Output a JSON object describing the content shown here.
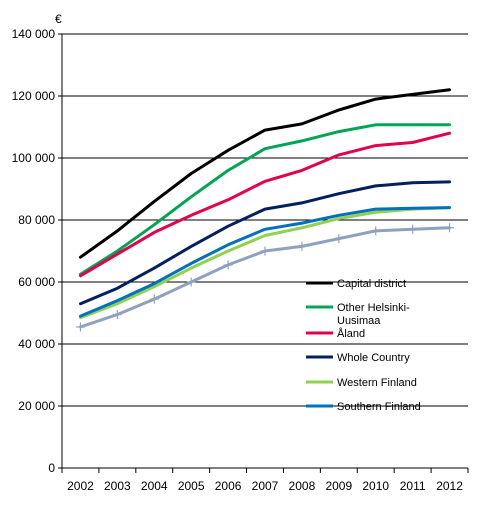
{
  "chart_data": {
    "type": "line",
    "title": "",
    "xlabel": "",
    "ylabel": "",
    "unit": "€",
    "x": [
      2002,
      2003,
      2004,
      2005,
      2006,
      2007,
      2008,
      2009,
      2010,
      2011,
      2012
    ],
    "x_labels": [
      "2002",
      "2003",
      "2004",
      "2005",
      "2006",
      "2007",
      "2008",
      "2009",
      "2010",
      "2011",
      "2012"
    ],
    "ylim": [
      0,
      140000
    ],
    "y_ticks": [
      0,
      20000,
      40000,
      60000,
      80000,
      100000,
      120000,
      140000
    ],
    "y_tick_labels": [
      "0",
      "20 000",
      "40 000",
      "60 000",
      "80 000",
      "100 000",
      "120 000",
      "140 000"
    ],
    "grid": "horizontal",
    "legend_position": "right",
    "series": [
      {
        "name": "Capital district",
        "color": "#000000",
        "marker": "none",
        "values": [
          68000,
          76500,
          86000,
          95000,
          102500,
          109000,
          111000,
          115500,
          119000,
          120500,
          122000
        ]
      },
      {
        "name": "Other Helsinki-Uusimaa",
        "color": "#00a651",
        "marker": "none",
        "values": [
          62500,
          70000,
          78500,
          87500,
          96000,
          103000,
          105500,
          108500,
          110700,
          110700,
          110700
        ]
      },
      {
        "name": "Åland",
        "color": "#e3004f",
        "marker": "none",
        "values": [
          62000,
          69000,
          76000,
          81500,
          86500,
          92500,
          96000,
          101000,
          104000,
          105000,
          108000
        ]
      },
      {
        "name": "Whole Country",
        "color": "#002060",
        "marker": "none",
        "values": [
          53000,
          58000,
          64500,
          71500,
          78000,
          83500,
          85500,
          88500,
          91000,
          92000,
          92300
        ]
      },
      {
        "name": "Western Finland",
        "color": "#92d050",
        "marker": "none",
        "values": [
          48500,
          53000,
          58500,
          64500,
          70000,
          75000,
          77500,
          80500,
          82500,
          83500,
          84000
        ]
      },
      {
        "name": "Southern Finland",
        "color": "#0070c0",
        "marker": "none",
        "values": [
          49000,
          54000,
          59500,
          66000,
          72000,
          77000,
          79000,
          81500,
          83500,
          83800,
          84000
        ]
      },
      {
        "name": "",
        "color": "#8ea2c0",
        "marker": "plus",
        "values": [
          45500,
          49500,
          54500,
          60000,
          65500,
          70000,
          71500,
          74000,
          76500,
          77000,
          77500
        ]
      }
    ]
  }
}
